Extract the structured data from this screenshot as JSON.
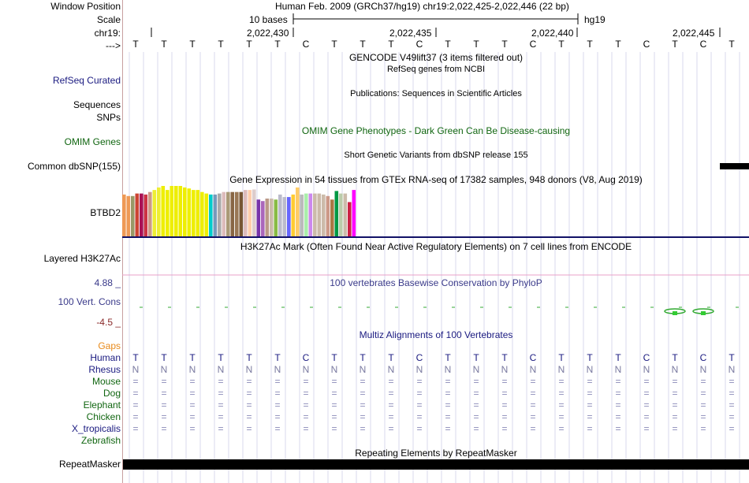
{
  "header": {
    "window_position_label": "Window Position",
    "scale_label": "Scale",
    "chrom_label": "chr19:",
    "strand_label": "--->",
    "position_title": "Human Feb. 2009 (GRCh37/hg19)   chr19:2,022,425-2,022,446 (22 bp)",
    "scale_text": "10 bases",
    "assembly": "hg19",
    "coords": [
      "2,022,430",
      "2,022,435",
      "2,022,440",
      "2,022,445"
    ]
  },
  "sequence": [
    "T",
    "T",
    "T",
    "T",
    "T",
    "T",
    "C",
    "T",
    "T",
    "T",
    "C",
    "T",
    "T",
    "T",
    "C",
    "T",
    "T",
    "T",
    "C",
    "T",
    "C",
    "T"
  ],
  "rhesus_seq": [
    "N",
    "N",
    "N",
    "N",
    "N",
    "N",
    "N",
    "N",
    "N",
    "N",
    "N",
    "N",
    "N",
    "N",
    "N",
    "N",
    "N",
    "N",
    "N",
    "N",
    "N",
    "N"
  ],
  "tracks": {
    "gencode": "GENCODE V49lift37 (3 items filtered out)",
    "refseq_sub": "RefSeq genes from NCBI",
    "refseq_label": "RefSeq Curated",
    "publications": "Publications: Sequences in Scientific Articles",
    "sequences_label": "Sequences",
    "snps_label": "SNPs",
    "omim_title": "OMIM Gene Phenotypes - Dark Green Can Be Disease-causing",
    "omim_label": "OMIM Genes",
    "short_variants": "Short Genetic Variants from dbSNP release 155",
    "dbsnp_label": "Common dbSNP(155)",
    "gtex_title": "Gene Expression in 54 tissues from GTEx RNA-seq of 17382 samples, 948 donors (V8, Aug 2019)",
    "gtex_label": "BTBD2",
    "h3k27ac_title": "H3K27Ac Mark (Often Found Near Active Regulatory Elements) on 7 cell lines from ENCODE",
    "h3k27ac_label": "Layered H3K27Ac",
    "phylop_title": "100 vertebrates Basewise Conservation by PhyloP",
    "phylop_label": "100 Vert. Cons",
    "phylop_max": "4.88 _",
    "phylop_min": "-4.5 _",
    "multiz_title": "Multiz Alignments of 100 Vertebrates",
    "repeat_title": "Repeating Elements by RepeatMasker",
    "repeat_label": "RepeatMasker"
  },
  "species": {
    "gaps": "Gaps",
    "human": "Human",
    "rhesus": "Rhesus",
    "mouse": "Mouse",
    "dog": "Dog",
    "elephant": "Elephant",
    "chicken": "Chicken",
    "xtrop": "X_tropicalis",
    "zebrafish": "Zebrafish"
  },
  "conservation_symbol": "=",
  "chart_data": {
    "type": "bar",
    "title": "Gene Expression in 54 tissues from GTEx RNA-seq of 17382 samples, 948 donors (V8, Aug 2019)",
    "gene": "BTBD2",
    "values": [
      0.83,
      0.8,
      0.8,
      0.85,
      0.85,
      0.83,
      0.88,
      0.92,
      0.97,
      1.0,
      0.92,
      1.0,
      1.0,
      1.0,
      0.97,
      0.95,
      0.92,
      0.92,
      0.88,
      0.85,
      0.83,
      0.83,
      0.85,
      0.88,
      0.88,
      0.88,
      0.88,
      0.88,
      0.92,
      0.92,
      0.93,
      0.73,
      0.7,
      0.75,
      0.75,
      0.73,
      0.83,
      0.78,
      0.78,
      0.83,
      0.97,
      0.83,
      0.85,
      0.85,
      0.85,
      0.85,
      0.83,
      0.8,
      0.73,
      0.9,
      0.85,
      0.85,
      0.68,
      0.92
    ],
    "colors": [
      "#ee9955",
      "#ee9955",
      "#999966",
      "#cc4433",
      "#aa1155",
      "#cc3344",
      "#cc9988",
      "#eeee33",
      "#eeee33",
      "#eeee00",
      "#eeee00",
      "#eeee00",
      "#eeee00",
      "#eeee00",
      "#eeee00",
      "#eeee00",
      "#eeee00",
      "#eeee00",
      "#eeee00",
      "#eeee00",
      "#00cccc",
      "#7799bb",
      "#aaaaaa",
      "#ddbbbb",
      "#aa9977",
      "#886644",
      "#997755",
      "#775533",
      "#ddbbbb",
      "#ffccaa",
      "#ddcccc",
      "#7733aa",
      "#aa66bb",
      "#bb9988",
      "#ccbbaa",
      "#88bb44",
      "#bbbbcc",
      "#bbbbcc",
      "#6666ff",
      "#ffcc33",
      "#ffcc66",
      "#bbbbbb",
      "#aaeeaa",
      "#cc88ee",
      "#ccbbaa",
      "#ccbbaa",
      "#ccbbaa",
      "#cc9988",
      "#aa7744",
      "#009944",
      "#bbccaa",
      "#ccbbaa",
      "#cc2244",
      "#ff00ff"
    ]
  }
}
